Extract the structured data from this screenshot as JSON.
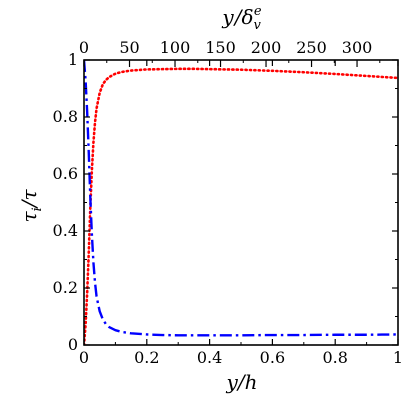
{
  "chart_data": {
    "type": "line",
    "xlabel": "y/h",
    "ylabel": "τi/τ",
    "top_xlabel": "y/δve",
    "xlim": [
      0,
      1
    ],
    "ylim": [
      0,
      1
    ],
    "top_xlim": [
      0,
      345
    ],
    "x_ticks": [
      0,
      0.2,
      0.4,
      0.6,
      0.8,
      1
    ],
    "x_tick_labels": [
      "0",
      "0.2",
      "0.4",
      "0.6",
      "0.8",
      "1"
    ],
    "y_ticks": [
      0,
      0.2,
      0.4,
      0.6,
      0.8,
      1
    ],
    "y_tick_labels": [
      "0",
      "0.2",
      "0.4",
      "0.6",
      "0.8",
      "1"
    ],
    "top_ticks": [
      0,
      50,
      100,
      150,
      200,
      250,
      300
    ],
    "top_tick_labels": [
      "0",
      "50",
      "100",
      "150",
      "200",
      "250",
      "300"
    ],
    "grid": false,
    "series": [
      {
        "color": "#ff0000",
        "style": "dotted",
        "x": [
          0,
          0.005,
          0.01,
          0.015,
          0.02,
          0.025,
          0.03,
          0.035,
          0.04,
          0.05,
          0.06,
          0.07,
          0.08,
          0.1,
          0.12,
          0.15,
          0.2,
          0.25,
          0.3,
          0.35,
          0.4,
          0.5,
          0.6,
          0.7,
          0.8,
          0.9,
          1.0
        ],
        "values": [
          0,
          0.07,
          0.18,
          0.32,
          0.48,
          0.61,
          0.71,
          0.78,
          0.83,
          0.885,
          0.915,
          0.93,
          0.94,
          0.952,
          0.958,
          0.963,
          0.967,
          0.968,
          0.969,
          0.969,
          0.968,
          0.966,
          0.962,
          0.957,
          0.951,
          0.944,
          0.937
        ]
      },
      {
        "color": "#0000ff",
        "style": "dashdot",
        "x": [
          0,
          0.005,
          0.01,
          0.015,
          0.02,
          0.025,
          0.03,
          0.035,
          0.04,
          0.05,
          0.06,
          0.07,
          0.08,
          0.1,
          0.12,
          0.15,
          0.2,
          0.25,
          0.3,
          0.35,
          0.4,
          0.5,
          0.6,
          0.7,
          0.8,
          0.9,
          1.0
        ],
        "values": [
          1.0,
          0.93,
          0.82,
          0.68,
          0.52,
          0.39,
          0.29,
          0.22,
          0.17,
          0.118,
          0.09,
          0.073,
          0.063,
          0.052,
          0.046,
          0.041,
          0.037,
          0.035,
          0.034,
          0.034,
          0.034,
          0.034,
          0.035,
          0.035,
          0.036,
          0.036,
          0.037
        ]
      }
    ]
  }
}
